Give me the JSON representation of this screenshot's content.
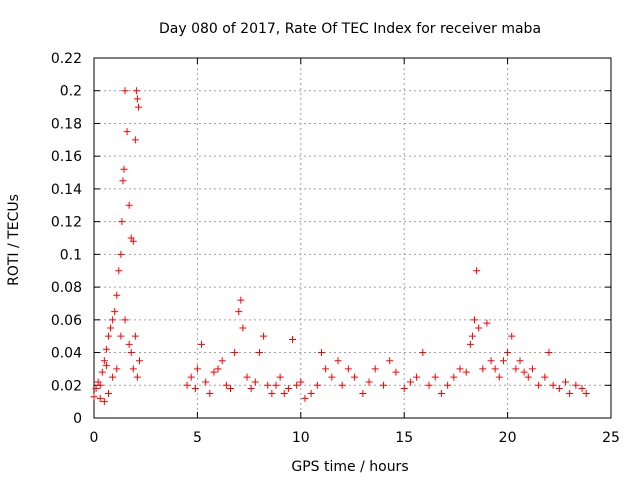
{
  "chart_data": {
    "type": "scatter",
    "title": "Day 080 of 2017, Rate Of TEC Index for receiver maba",
    "xlabel": "GPS time / hours",
    "ylabel": "ROTI / TECUs",
    "xlim": [
      0,
      25
    ],
    "ylim": [
      0,
      0.22
    ],
    "x_ticks": [
      0,
      5,
      10,
      15,
      20,
      25
    ],
    "y_ticks": [
      0,
      0.02,
      0.04,
      0.06,
      0.08,
      0.1,
      0.12,
      0.14,
      0.16,
      0.18,
      0.2,
      0.22
    ],
    "x_tick_labels": [
      "0",
      "5",
      "10",
      "15",
      "20",
      "25"
    ],
    "y_tick_labels": [
      "0",
      "0.02",
      "0.04",
      "0.06",
      "0.08",
      "0.1",
      "0.12",
      "0.14",
      "0.16",
      "0.18",
      "0.2",
      "0.22"
    ],
    "grid": true,
    "marker": "plus",
    "marker_color": "#ff0000",
    "series": [
      {
        "name": "ROTI",
        "points": [
          [
            0.0,
            0.013
          ],
          [
            0.1,
            0.018
          ],
          [
            0.2,
            0.022
          ],
          [
            0.3,
            0.02
          ],
          [
            0.4,
            0.028
          ],
          [
            0.5,
            0.035
          ],
          [
            0.6,
            0.042
          ],
          [
            0.7,
            0.05
          ],
          [
            0.8,
            0.055
          ],
          [
            0.9,
            0.06
          ],
          [
            1.0,
            0.065
          ],
          [
            1.1,
            0.075
          ],
          [
            1.2,
            0.09
          ],
          [
            1.3,
            0.1
          ],
          [
            1.35,
            0.12
          ],
          [
            1.4,
            0.145
          ],
          [
            1.45,
            0.152
          ],
          [
            1.5,
            0.2
          ],
          [
            1.6,
            0.175
          ],
          [
            1.7,
            0.13
          ],
          [
            1.8,
            0.11
          ],
          [
            1.9,
            0.108
          ],
          [
            2.0,
            0.17
          ],
          [
            2.05,
            0.2
          ],
          [
            2.1,
            0.195
          ],
          [
            2.15,
            0.19
          ],
          [
            2.0,
            0.05
          ],
          [
            1.8,
            0.04
          ],
          [
            1.5,
            0.06
          ],
          [
            1.3,
            0.05
          ],
          [
            1.1,
            0.03
          ],
          [
            0.9,
            0.025
          ],
          [
            0.7,
            0.015
          ],
          [
            0.5,
            0.01
          ],
          [
            0.3,
            0.012
          ],
          [
            2.2,
            0.035
          ],
          [
            2.1,
            0.025
          ],
          [
            1.9,
            0.03
          ],
          [
            1.7,
            0.045
          ],
          [
            0.6,
            0.032
          ],
          [
            4.5,
            0.02
          ],
          [
            4.7,
            0.025
          ],
          [
            4.9,
            0.018
          ],
          [
            5.0,
            0.03
          ],
          [
            5.2,
            0.045
          ],
          [
            5.4,
            0.022
          ],
          [
            5.6,
            0.015
          ],
          [
            5.8,
            0.028
          ],
          [
            6.0,
            0.03
          ],
          [
            6.2,
            0.035
          ],
          [
            6.4,
            0.02
          ],
          [
            6.6,
            0.018
          ],
          [
            6.8,
            0.04
          ],
          [
            7.0,
            0.065
          ],
          [
            7.1,
            0.072
          ],
          [
            7.2,
            0.055
          ],
          [
            7.4,
            0.025
          ],
          [
            7.6,
            0.018
          ],
          [
            7.8,
            0.022
          ],
          [
            8.0,
            0.04
          ],
          [
            8.2,
            0.05
          ],
          [
            8.4,
            0.02
          ],
          [
            8.6,
            0.015
          ],
          [
            8.8,
            0.02
          ],
          [
            9.0,
            0.025
          ],
          [
            9.2,
            0.015
          ],
          [
            9.4,
            0.018
          ],
          [
            9.6,
            0.048
          ],
          [
            9.8,
            0.02
          ],
          [
            10.0,
            0.022
          ],
          [
            10.2,
            0.012
          ],
          [
            10.5,
            0.015
          ],
          [
            10.8,
            0.02
          ],
          [
            11.0,
            0.04
          ],
          [
            11.2,
            0.03
          ],
          [
            11.5,
            0.025
          ],
          [
            11.8,
            0.035
          ],
          [
            12.0,
            0.02
          ],
          [
            12.3,
            0.03
          ],
          [
            12.6,
            0.025
          ],
          [
            13.0,
            0.015
          ],
          [
            13.3,
            0.022
          ],
          [
            13.6,
            0.03
          ],
          [
            14.0,
            0.02
          ],
          [
            14.3,
            0.035
          ],
          [
            14.6,
            0.028
          ],
          [
            15.0,
            0.018
          ],
          [
            15.3,
            0.022
          ],
          [
            15.6,
            0.025
          ],
          [
            15.9,
            0.04
          ],
          [
            16.2,
            0.02
          ],
          [
            16.5,
            0.025
          ],
          [
            16.8,
            0.015
          ],
          [
            17.1,
            0.02
          ],
          [
            17.4,
            0.025
          ],
          [
            17.7,
            0.03
          ],
          [
            18.0,
            0.028
          ],
          [
            18.2,
            0.045
          ],
          [
            18.3,
            0.05
          ],
          [
            18.4,
            0.06
          ],
          [
            18.5,
            0.09
          ],
          [
            18.6,
            0.055
          ],
          [
            18.8,
            0.03
          ],
          [
            19.0,
            0.058
          ],
          [
            19.2,
            0.035
          ],
          [
            19.4,
            0.03
          ],
          [
            19.6,
            0.025
          ],
          [
            19.8,
            0.035
          ],
          [
            20.0,
            0.04
          ],
          [
            20.2,
            0.05
          ],
          [
            20.4,
            0.03
          ],
          [
            20.6,
            0.035
          ],
          [
            20.8,
            0.028
          ],
          [
            21.0,
            0.025
          ],
          [
            21.2,
            0.03
          ],
          [
            21.5,
            0.02
          ],
          [
            21.8,
            0.025
          ],
          [
            22.0,
            0.04
          ],
          [
            22.2,
            0.02
          ],
          [
            22.5,
            0.018
          ],
          [
            22.8,
            0.022
          ],
          [
            23.0,
            0.015
          ],
          [
            23.3,
            0.02
          ],
          [
            23.6,
            0.018
          ],
          [
            23.8,
            0.015
          ]
        ]
      }
    ]
  }
}
